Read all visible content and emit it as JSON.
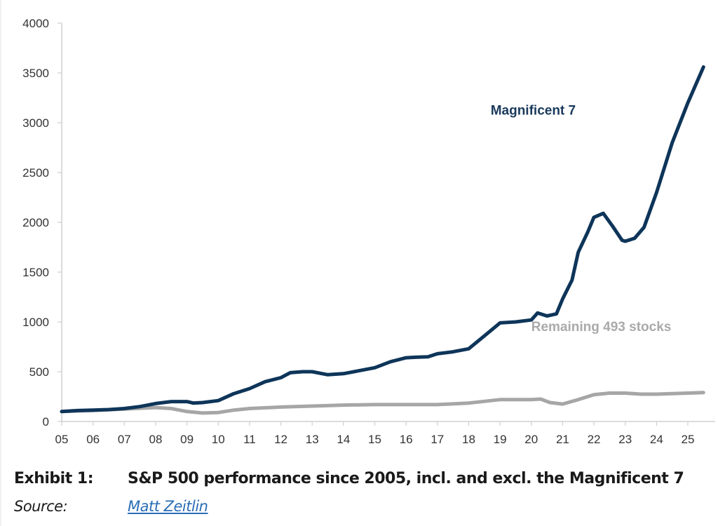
{
  "chart_data": {
    "type": "line",
    "title": "",
    "xlabel": "",
    "ylabel": "",
    "ylim": [
      0,
      4000
    ],
    "xlim": [
      2005,
      2025.7
    ],
    "yticks": [
      "0",
      "500",
      "1000",
      "1500",
      "2000",
      "2500",
      "3000",
      "3500",
      "4000"
    ],
    "ytick_values": [
      0,
      500,
      1000,
      1500,
      2000,
      2500,
      3000,
      3500,
      4000
    ],
    "xticks": [
      "05",
      "06",
      "07",
      "08",
      "09",
      "10",
      "11",
      "12",
      "13",
      "14",
      "15",
      "16",
      "17",
      "18",
      "19",
      "20",
      "21",
      "22",
      "23",
      "24",
      "25"
    ],
    "xtick_values": [
      2005,
      2006,
      2007,
      2008,
      2009,
      2010,
      2011,
      2012,
      2013,
      2014,
      2015,
      2016,
      2017,
      2018,
      2019,
      2020,
      2021,
      2022,
      2023,
      2024,
      2025
    ],
    "grid": false,
    "series": [
      {
        "name": "Magnificent 7",
        "color": "#0e3559",
        "x": [
          2005,
          2005.5,
          2006,
          2006.5,
          2007,
          2007.5,
          2008,
          2008.5,
          2009,
          2009.2,
          2009.5,
          2010,
          2010.5,
          2011,
          2011.5,
          2012,
          2012.3,
          2012.7,
          2013,
          2013.5,
          2014,
          2014.5,
          2015,
          2015.5,
          2016,
          2016.3,
          2016.7,
          2017,
          2017.5,
          2018,
          2018.5,
          2019,
          2019.5,
          2020,
          2020.2,
          2020.5,
          2020.8,
          2021,
          2021.3,
          2021.5,
          2021.8,
          2022,
          2022.3,
          2022.6,
          2022.9,
          2023,
          2023.3,
          2023.6,
          2024,
          2024.5,
          2025,
          2025.5
        ],
        "y": [
          100,
          110,
          115,
          120,
          130,
          150,
          180,
          200,
          200,
          185,
          190,
          210,
          280,
          330,
          400,
          440,
          490,
          500,
          500,
          470,
          480,
          510,
          540,
          600,
          640,
          645,
          650,
          680,
          700,
          730,
          860,
          990,
          1000,
          1020,
          1090,
          1060,
          1080,
          1230,
          1420,
          1700,
          1900,
          2050,
          2090,
          1960,
          1820,
          1810,
          1840,
          1950,
          2300,
          2800,
          3200,
          3560
        ]
      },
      {
        "name": "Remaining 493 stocks",
        "color": "#a6a6a6",
        "x": [
          2005,
          2006,
          2007,
          2008,
          2008.5,
          2009,
          2009.5,
          2010,
          2010.5,
          2011,
          2012,
          2013,
          2014,
          2015,
          2016,
          2017,
          2018,
          2019,
          2020,
          2020.3,
          2020.6,
          2021,
          2021.5,
          2022,
          2022.5,
          2023,
          2023.5,
          2024,
          2024.5,
          2025,
          2025.5
        ],
        "y": [
          100,
          110,
          125,
          140,
          130,
          100,
          85,
          90,
          115,
          130,
          145,
          155,
          165,
          170,
          170,
          170,
          185,
          220,
          220,
          225,
          190,
          175,
          220,
          270,
          285,
          285,
          275,
          275,
          280,
          285,
          290
        ]
      }
    ],
    "annotations": [
      {
        "text": "Magnificent 7",
        "series": "Magnificent 7",
        "x": 2018.7,
        "y": 3080
      },
      {
        "text": "Remaining 493 stocks",
        "series": "Remaining 493 stocks",
        "x": 2020,
        "y": 910
      }
    ]
  },
  "caption": {
    "exhibit_label": "Exhibit 1:",
    "exhibit_text": "S&P 500 performance since 2005, incl. and excl. the Magnificent 7",
    "source_label": "Source:",
    "source_link": "Matt Zeitlin"
  }
}
